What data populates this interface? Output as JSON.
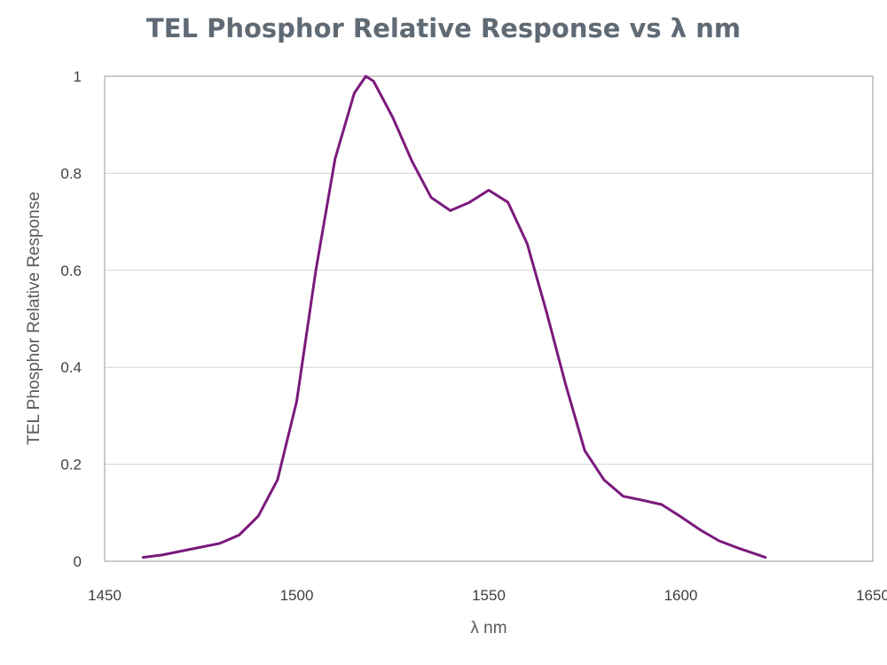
{
  "chart_data": {
    "type": "line",
    "title": "TEL Phosphor Relative Response vs λ nm",
    "xlabel": "λ nm",
    "ylabel": "TEL Phosphor Relative Response",
    "xlim": [
      1450,
      1650
    ],
    "ylim": [
      0,
      1
    ],
    "xticks": [
      1450,
      1500,
      1550,
      1600,
      1650
    ],
    "yticks": [
      0,
      0.2,
      0.4,
      0.6,
      0.8,
      1
    ],
    "ytick_labels": [
      "0",
      "0.2",
      "0.4",
      "0.6",
      "0.8",
      "1"
    ],
    "grid": {
      "horizontal": true,
      "vertical": false
    },
    "legend": "none",
    "series": [
      {
        "color": "#7b1a7d",
        "x": [
          1460,
          1465,
          1470,
          1475,
          1480,
          1485,
          1490,
          1495,
          1500,
          1505,
          1510,
          1515,
          1518,
          1520,
          1525,
          1530,
          1535,
          1540,
          1545,
          1550,
          1555,
          1560,
          1565,
          1570,
          1575,
          1580,
          1585,
          1590,
          1595,
          1600,
          1605,
          1610,
          1615,
          1622
        ],
        "y": [
          0.008,
          0.013,
          0.021,
          0.029,
          0.037,
          0.054,
          0.093,
          0.168,
          0.33,
          0.6,
          0.83,
          0.965,
          1.0,
          0.99,
          0.915,
          0.825,
          0.75,
          0.723,
          0.74,
          0.765,
          0.74,
          0.655,
          0.515,
          0.365,
          0.228,
          0.168,
          0.134,
          0.126,
          0.117,
          0.092,
          0.065,
          0.042,
          0.027,
          0.008
        ]
      }
    ]
  }
}
